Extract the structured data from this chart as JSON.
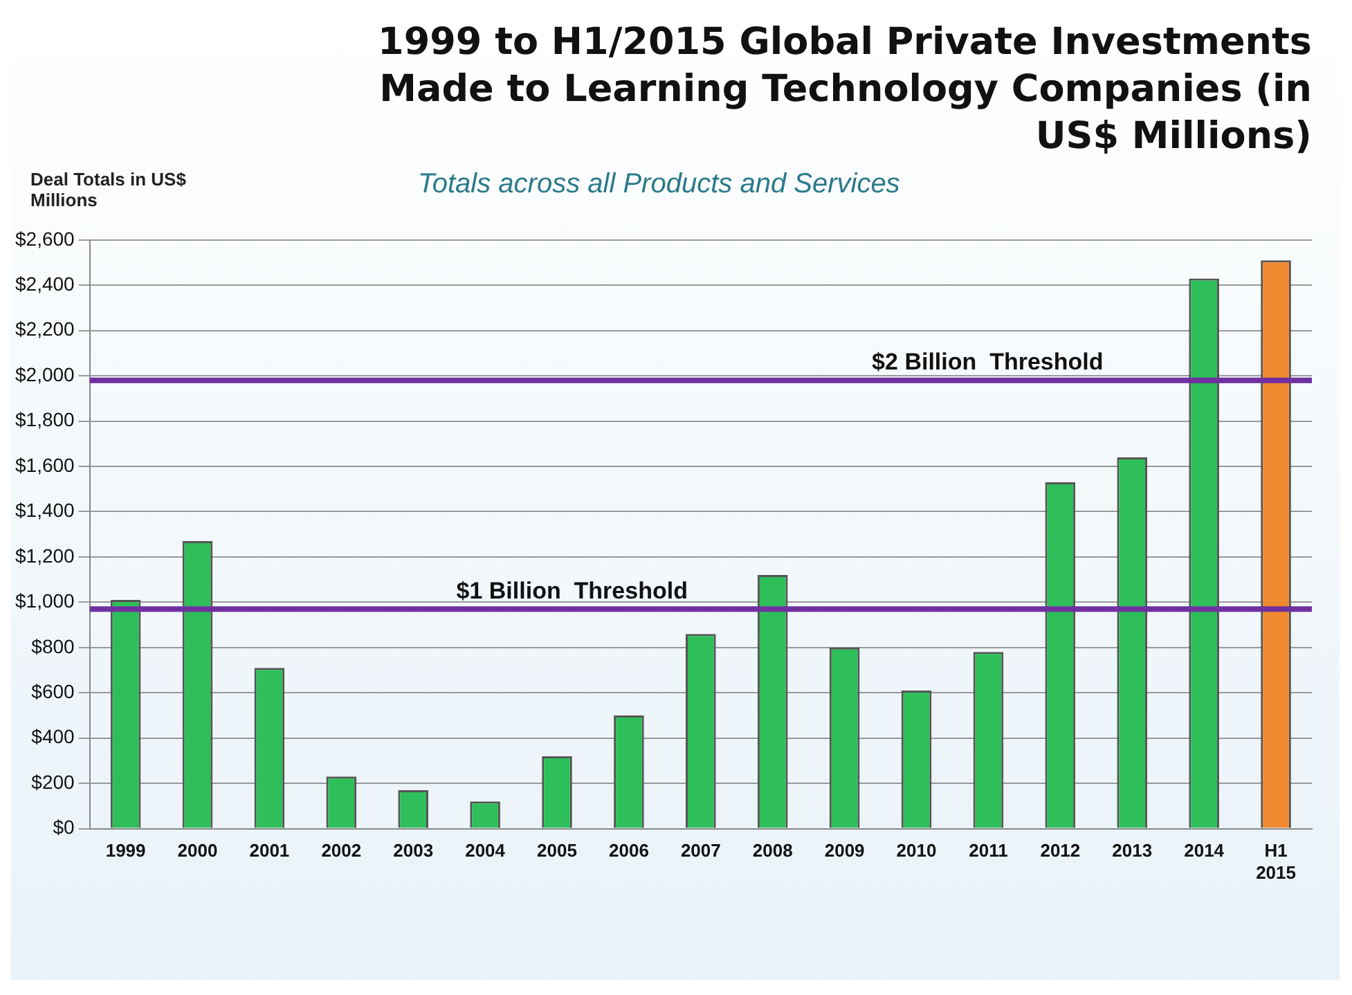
{
  "chart_data": {
    "type": "bar",
    "title": "1999 to H1/2015 Global Private Investments Made to Learning Technology Companies (in US$ Millions)",
    "subtitle": "Totals across all Products and Services",
    "ylabel": "Deal Totals in US$ Millions",
    "categories": [
      "1999",
      "2000",
      "2001",
      "2002",
      "2003",
      "2004",
      "2005",
      "2006",
      "2007",
      "2008",
      "2009",
      "2010",
      "2011",
      "2012",
      "2013",
      "2014",
      "H1 2015"
    ],
    "values": [
      1010,
      1270,
      710,
      230,
      170,
      120,
      320,
      500,
      860,
      1120,
      800,
      610,
      780,
      1530,
      1640,
      2430,
      2510
    ],
    "colors": [
      "#2fbf5a",
      "#2fbf5a",
      "#2fbf5a",
      "#2fbf5a",
      "#2fbf5a",
      "#2fbf5a",
      "#2fbf5a",
      "#2fbf5a",
      "#2fbf5a",
      "#2fbf5a",
      "#2fbf5a",
      "#2fbf5a",
      "#2fbf5a",
      "#2fbf5a",
      "#2fbf5a",
      "#2fbf5a",
      "#f08a30"
    ],
    "ylim": [
      0,
      2600
    ],
    "yticks": [
      {
        "value": 0,
        "label": "$0"
      },
      {
        "value": 200,
        "label": "$200"
      },
      {
        "value": 400,
        "label": "$400"
      },
      {
        "value": 600,
        "label": "$600"
      },
      {
        "value": 800,
        "label": "$800"
      },
      {
        "value": 1000,
        "label": "$1,000"
      },
      {
        "value": 1200,
        "label": "$1,200"
      },
      {
        "value": 1400,
        "label": "$1,400"
      },
      {
        "value": 1600,
        "label": "$1,600"
      },
      {
        "value": 1800,
        "label": "$1,800"
      },
      {
        "value": 2000,
        "label": "$2,000"
      },
      {
        "value": 2200,
        "label": "$2,200"
      },
      {
        "value": 2400,
        "label": "$2,400"
      },
      {
        "value": 2600,
        "label": "$2,600"
      }
    ],
    "ref_lines": [
      {
        "axis": "y",
        "value": 970,
        "label": "$1 Billion  Threshold",
        "color": "#7030a0"
      },
      {
        "axis": "y",
        "value": 1980,
        "label": "$2 Billion  Threshold",
        "color": "#7030a0"
      }
    ],
    "grid": "y",
    "legend": false
  }
}
